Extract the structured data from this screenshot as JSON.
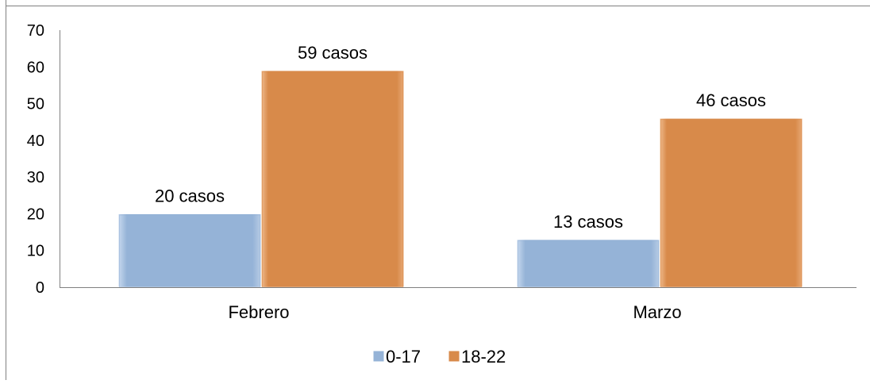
{
  "chart_data": {
    "type": "bar",
    "categories": [
      "Febrero",
      "Marzo"
    ],
    "series": [
      {
        "name": "0-17",
        "values": [
          20,
          13
        ],
        "labels": [
          "20 casos",
          "13 casos"
        ],
        "color": "#95B3D7"
      },
      {
        "name": "18-22",
        "values": [
          59,
          46
        ],
        "labels": [
          "59 casos",
          "46 casos"
        ],
        "color": "#D88A4A"
      }
    ],
    "y_ticks": [
      "0",
      "10",
      "20",
      "30",
      "40",
      "50",
      "60",
      "70"
    ],
    "ylim": [
      0,
      70
    ],
    "title": "",
    "xlabel": "",
    "ylabel": "",
    "grid": false,
    "legend_position": "bottom",
    "frame_border_color": "#808080",
    "axis_color": "#808080"
  }
}
